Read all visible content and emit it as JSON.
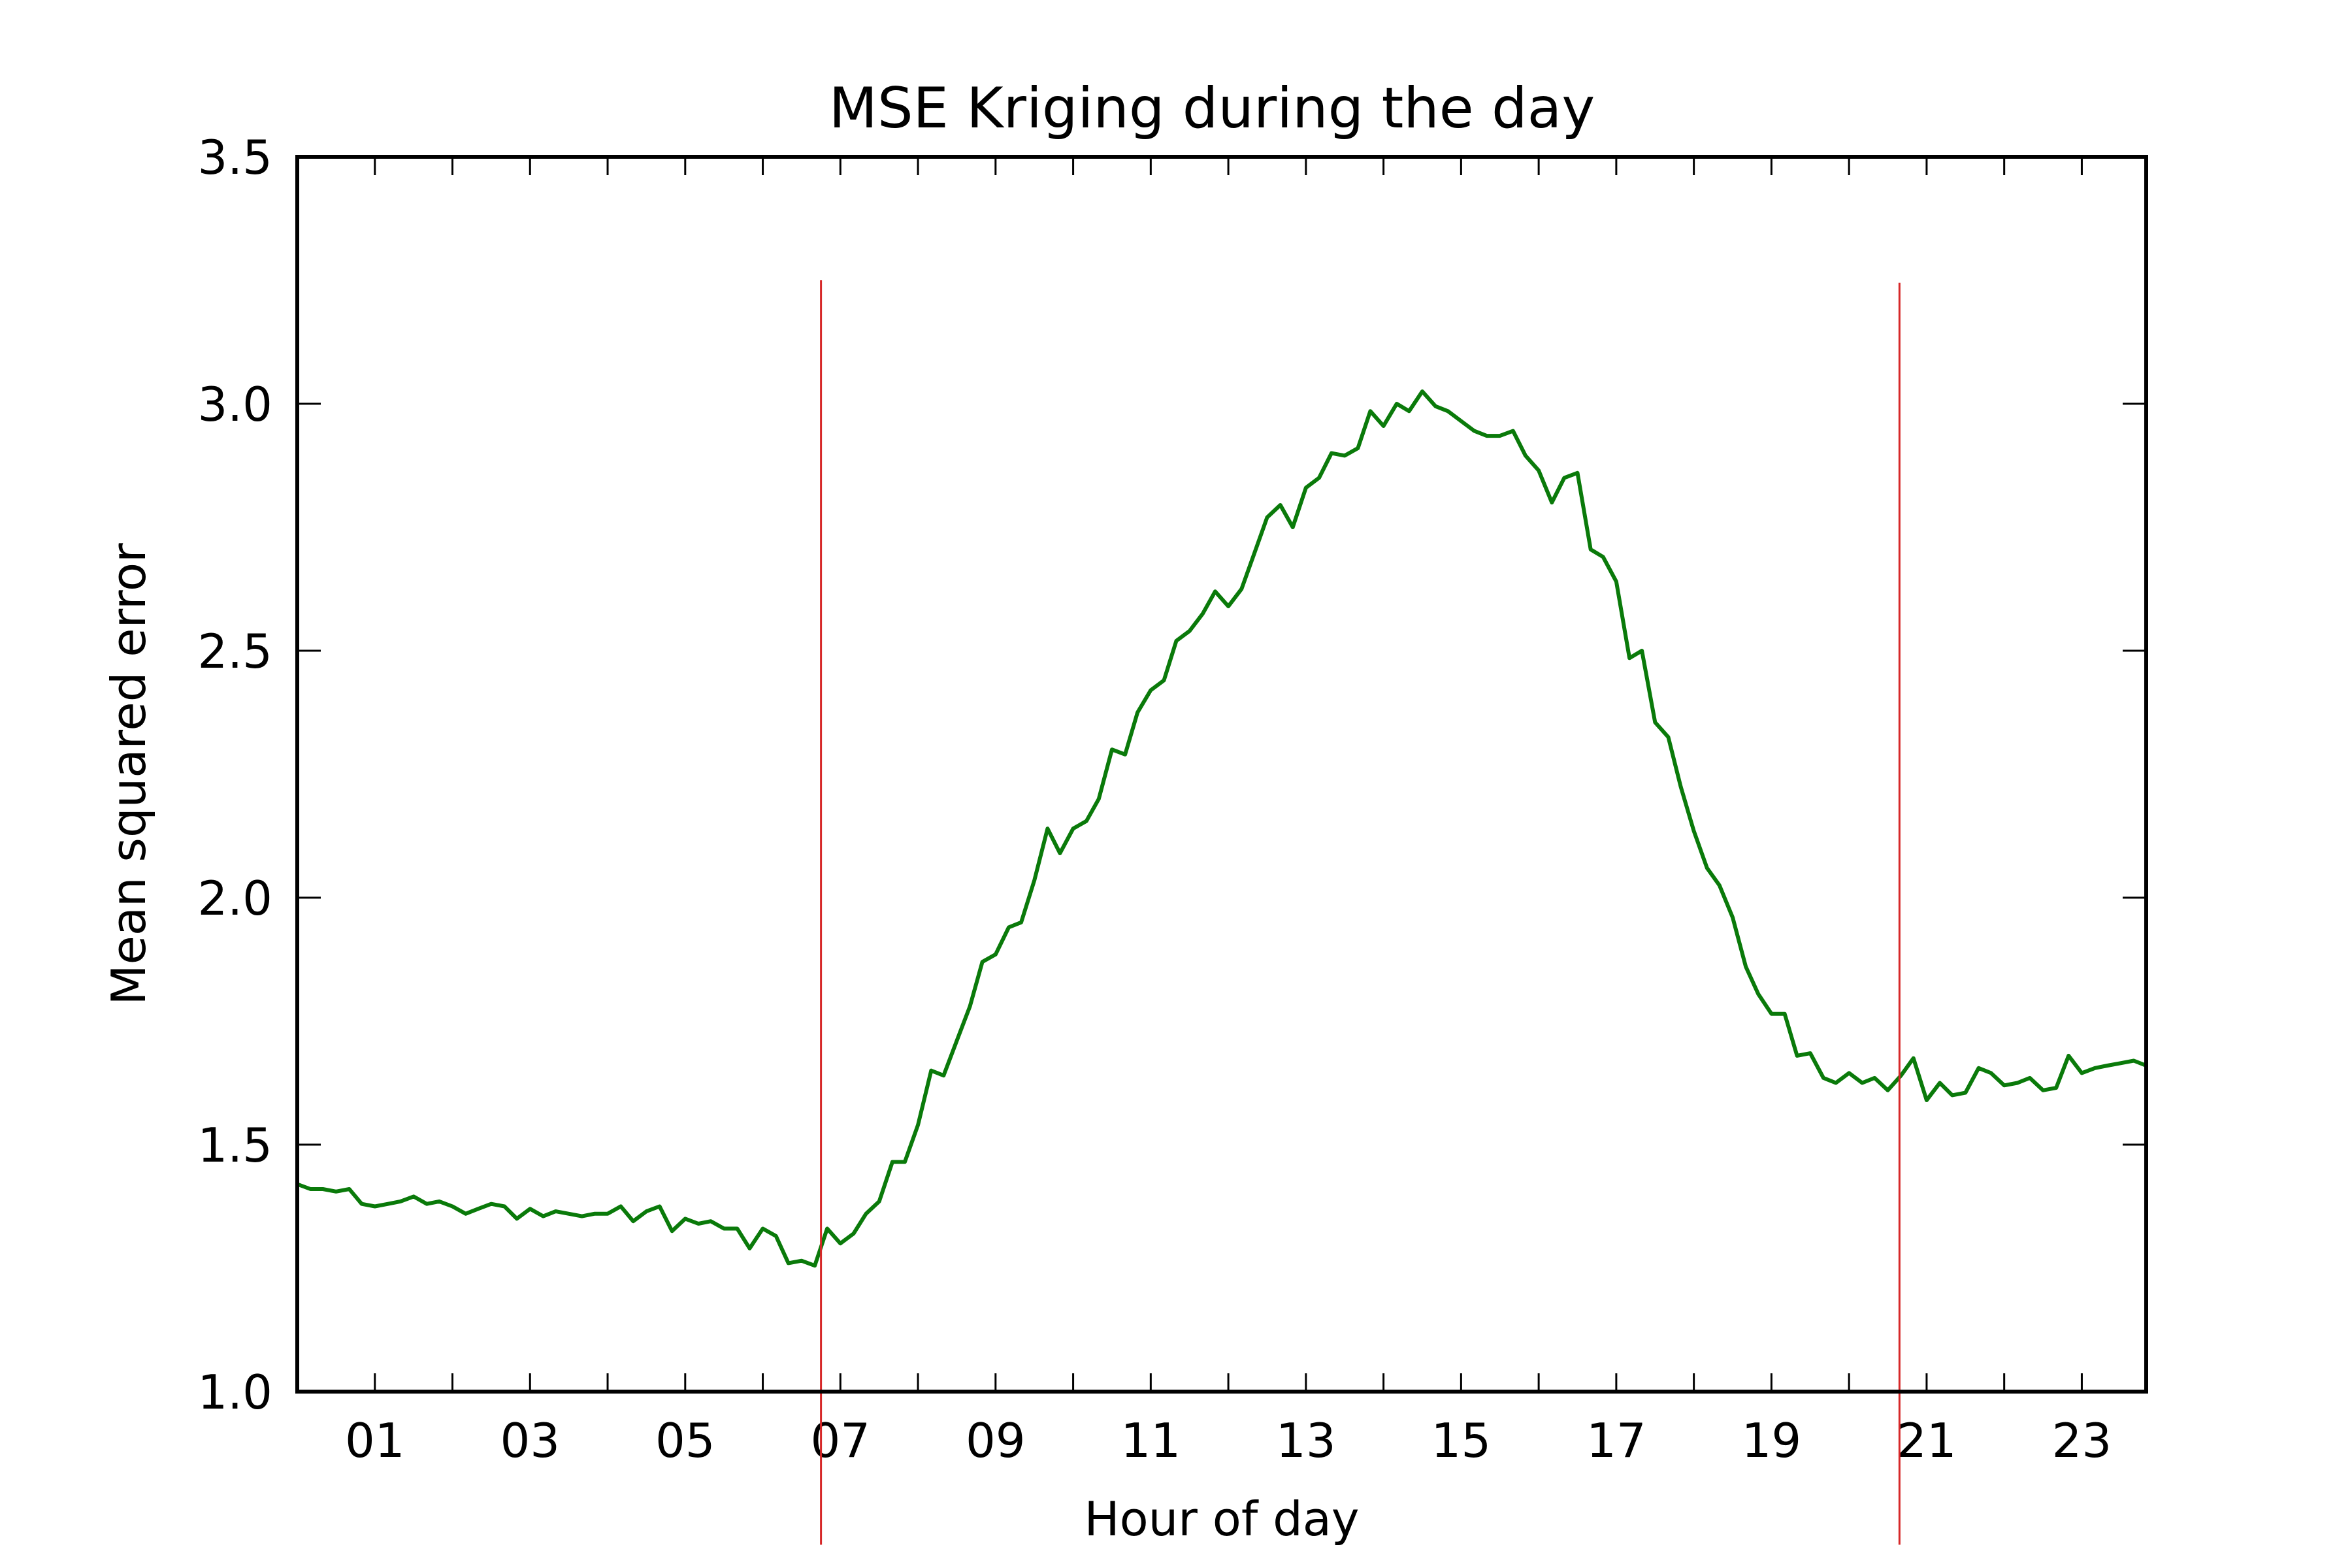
{
  "chart_data": {
    "type": "line",
    "title": "MSE Kriging during the day",
    "xlabel": "Hour of day",
    "ylabel": "Mean squared error",
    "xlim": [
      0,
      23.83
    ],
    "ylim": [
      1.0,
      3.5
    ],
    "grid": false,
    "xticks": [
      {
        "value": 1,
        "label": "01"
      },
      {
        "value": 3,
        "label": "03"
      },
      {
        "value": 5,
        "label": "05"
      },
      {
        "value": 7,
        "label": "07"
      },
      {
        "value": 9,
        "label": "09"
      },
      {
        "value": 11,
        "label": "11"
      },
      {
        "value": 13,
        "label": "13"
      },
      {
        "value": 15,
        "label": "15"
      },
      {
        "value": 17,
        "label": "17"
      },
      {
        "value": 19,
        "label": "19"
      },
      {
        "value": 21,
        "label": "21"
      },
      {
        "value": 23,
        "label": "23"
      }
    ],
    "yticks": [
      {
        "value": 1.0,
        "label": "1.0"
      },
      {
        "value": 1.5,
        "label": "1.5"
      },
      {
        "value": 2.0,
        "label": "2.0"
      },
      {
        "value": 2.5,
        "label": "2.5"
      },
      {
        "value": 3.0,
        "label": "3.0"
      },
      {
        "value": 3.5,
        "label": "3.5"
      }
    ],
    "vlines": [
      {
        "x": 6.75,
        "y_top": 3.25,
        "y_bottom": 0.69,
        "color": "#d62728"
      },
      {
        "x": 20.65,
        "y_top": 3.245,
        "y_bottom": 0.69,
        "color": "#d62728"
      }
    ],
    "series": [
      {
        "color": "#0a7a0a",
        "points": [
          [
            0.0,
            1.42
          ],
          [
            0.17,
            1.41
          ],
          [
            0.33,
            1.41
          ],
          [
            0.5,
            1.405
          ],
          [
            0.67,
            1.41
          ],
          [
            0.83,
            1.38
          ],
          [
            1.0,
            1.375
          ],
          [
            1.17,
            1.38
          ],
          [
            1.33,
            1.385
          ],
          [
            1.5,
            1.395
          ],
          [
            1.67,
            1.38
          ],
          [
            1.83,
            1.385
          ],
          [
            2.0,
            1.375
          ],
          [
            2.17,
            1.36
          ],
          [
            2.33,
            1.37
          ],
          [
            2.5,
            1.38
          ],
          [
            2.67,
            1.375
          ],
          [
            2.83,
            1.35
          ],
          [
            3.0,
            1.37
          ],
          [
            3.17,
            1.355
          ],
          [
            3.33,
            1.365
          ],
          [
            3.5,
            1.36
          ],
          [
            3.67,
            1.355
          ],
          [
            3.83,
            1.36
          ],
          [
            4.0,
            1.36
          ],
          [
            4.17,
            1.375
          ],
          [
            4.33,
            1.345
          ],
          [
            4.5,
            1.365
          ],
          [
            4.67,
            1.375
          ],
          [
            4.83,
            1.325
          ],
          [
            5.0,
            1.35
          ],
          [
            5.17,
            1.34
          ],
          [
            5.33,
            1.345
          ],
          [
            5.5,
            1.33
          ],
          [
            5.67,
            1.33
          ],
          [
            5.83,
            1.29
          ],
          [
            6.0,
            1.33
          ],
          [
            6.17,
            1.315
          ],
          [
            6.33,
            1.26
          ],
          [
            6.5,
            1.265
          ],
          [
            6.67,
            1.255
          ],
          [
            6.83,
            1.33
          ],
          [
            7.0,
            1.3
          ],
          [
            7.17,
            1.32
          ],
          [
            7.33,
            1.36
          ],
          [
            7.5,
            1.385
          ],
          [
            7.67,
            1.465
          ],
          [
            7.83,
            1.465
          ],
          [
            8.0,
            1.54
          ],
          [
            8.17,
            1.65
          ],
          [
            8.33,
            1.64
          ],
          [
            8.5,
            1.71
          ],
          [
            8.67,
            1.78
          ],
          [
            8.83,
            1.87
          ],
          [
            9.0,
            1.885
          ],
          [
            9.17,
            1.94
          ],
          [
            9.33,
            1.95
          ],
          [
            9.5,
            2.035
          ],
          [
            9.67,
            2.14
          ],
          [
            9.83,
            2.09
          ],
          [
            10.0,
            2.14
          ],
          [
            10.17,
            2.155
          ],
          [
            10.33,
            2.2
          ],
          [
            10.5,
            2.3
          ],
          [
            10.67,
            2.29
          ],
          [
            10.83,
            2.375
          ],
          [
            11.0,
            2.42
          ],
          [
            11.17,
            2.44
          ],
          [
            11.33,
            2.52
          ],
          [
            11.5,
            2.54
          ],
          [
            11.67,
            2.575
          ],
          [
            11.83,
            2.62
          ],
          [
            12.0,
            2.59
          ],
          [
            12.17,
            2.625
          ],
          [
            12.33,
            2.695
          ],
          [
            12.5,
            2.77
          ],
          [
            12.67,
            2.795
          ],
          [
            12.83,
            2.75
          ],
          [
            13.0,
            2.83
          ],
          [
            13.17,
            2.85
          ],
          [
            13.33,
            2.9
          ],
          [
            13.5,
            2.895
          ],
          [
            13.67,
            2.91
          ],
          [
            13.83,
            2.985
          ],
          [
            14.0,
            2.955
          ],
          [
            14.17,
            3.0
          ],
          [
            14.33,
            2.985
          ],
          [
            14.5,
            3.025
          ],
          [
            14.67,
            2.995
          ],
          [
            14.83,
            2.985
          ],
          [
            15.0,
            2.965
          ],
          [
            15.17,
            2.945
          ],
          [
            15.33,
            2.935
          ],
          [
            15.5,
            2.935
          ],
          [
            15.67,
            2.945
          ],
          [
            15.83,
            2.895
          ],
          [
            16.0,
            2.865
          ],
          [
            16.17,
            2.8
          ],
          [
            16.33,
            2.85
          ],
          [
            16.5,
            2.86
          ],
          [
            16.67,
            2.705
          ],
          [
            16.83,
            2.69
          ],
          [
            17.0,
            2.64
          ],
          [
            17.17,
            2.485
          ],
          [
            17.33,
            2.5
          ],
          [
            17.5,
            2.355
          ],
          [
            17.67,
            2.325
          ],
          [
            17.83,
            2.225
          ],
          [
            18.0,
            2.135
          ],
          [
            18.17,
            2.06
          ],
          [
            18.33,
            2.025
          ],
          [
            18.5,
            1.96
          ],
          [
            18.67,
            1.86
          ],
          [
            18.83,
            1.805
          ],
          [
            19.0,
            1.765
          ],
          [
            19.17,
            1.765
          ],
          [
            19.33,
            1.68
          ],
          [
            19.5,
            1.685
          ],
          [
            19.67,
            1.635
          ],
          [
            19.83,
            1.625
          ],
          [
            20.0,
            1.645
          ],
          [
            20.17,
            1.625
          ],
          [
            20.33,
            1.635
          ],
          [
            20.5,
            1.61
          ],
          [
            20.67,
            1.64
          ],
          [
            20.83,
            1.675
          ],
          [
            21.0,
            1.59
          ],
          [
            21.17,
            1.625
          ],
          [
            21.33,
            1.6
          ],
          [
            21.5,
            1.605
          ],
          [
            21.67,
            1.655
          ],
          [
            21.83,
            1.645
          ],
          [
            22.0,
            1.62
          ],
          [
            22.17,
            1.625
          ],
          [
            22.33,
            1.635
          ],
          [
            22.5,
            1.61
          ],
          [
            22.67,
            1.615
          ],
          [
            22.83,
            1.68
          ],
          [
            23.0,
            1.645
          ],
          [
            23.17,
            1.655
          ],
          [
            23.33,
            1.66
          ],
          [
            23.5,
            1.665
          ],
          [
            23.67,
            1.67
          ],
          [
            23.83,
            1.66
          ]
        ]
      }
    ]
  }
}
